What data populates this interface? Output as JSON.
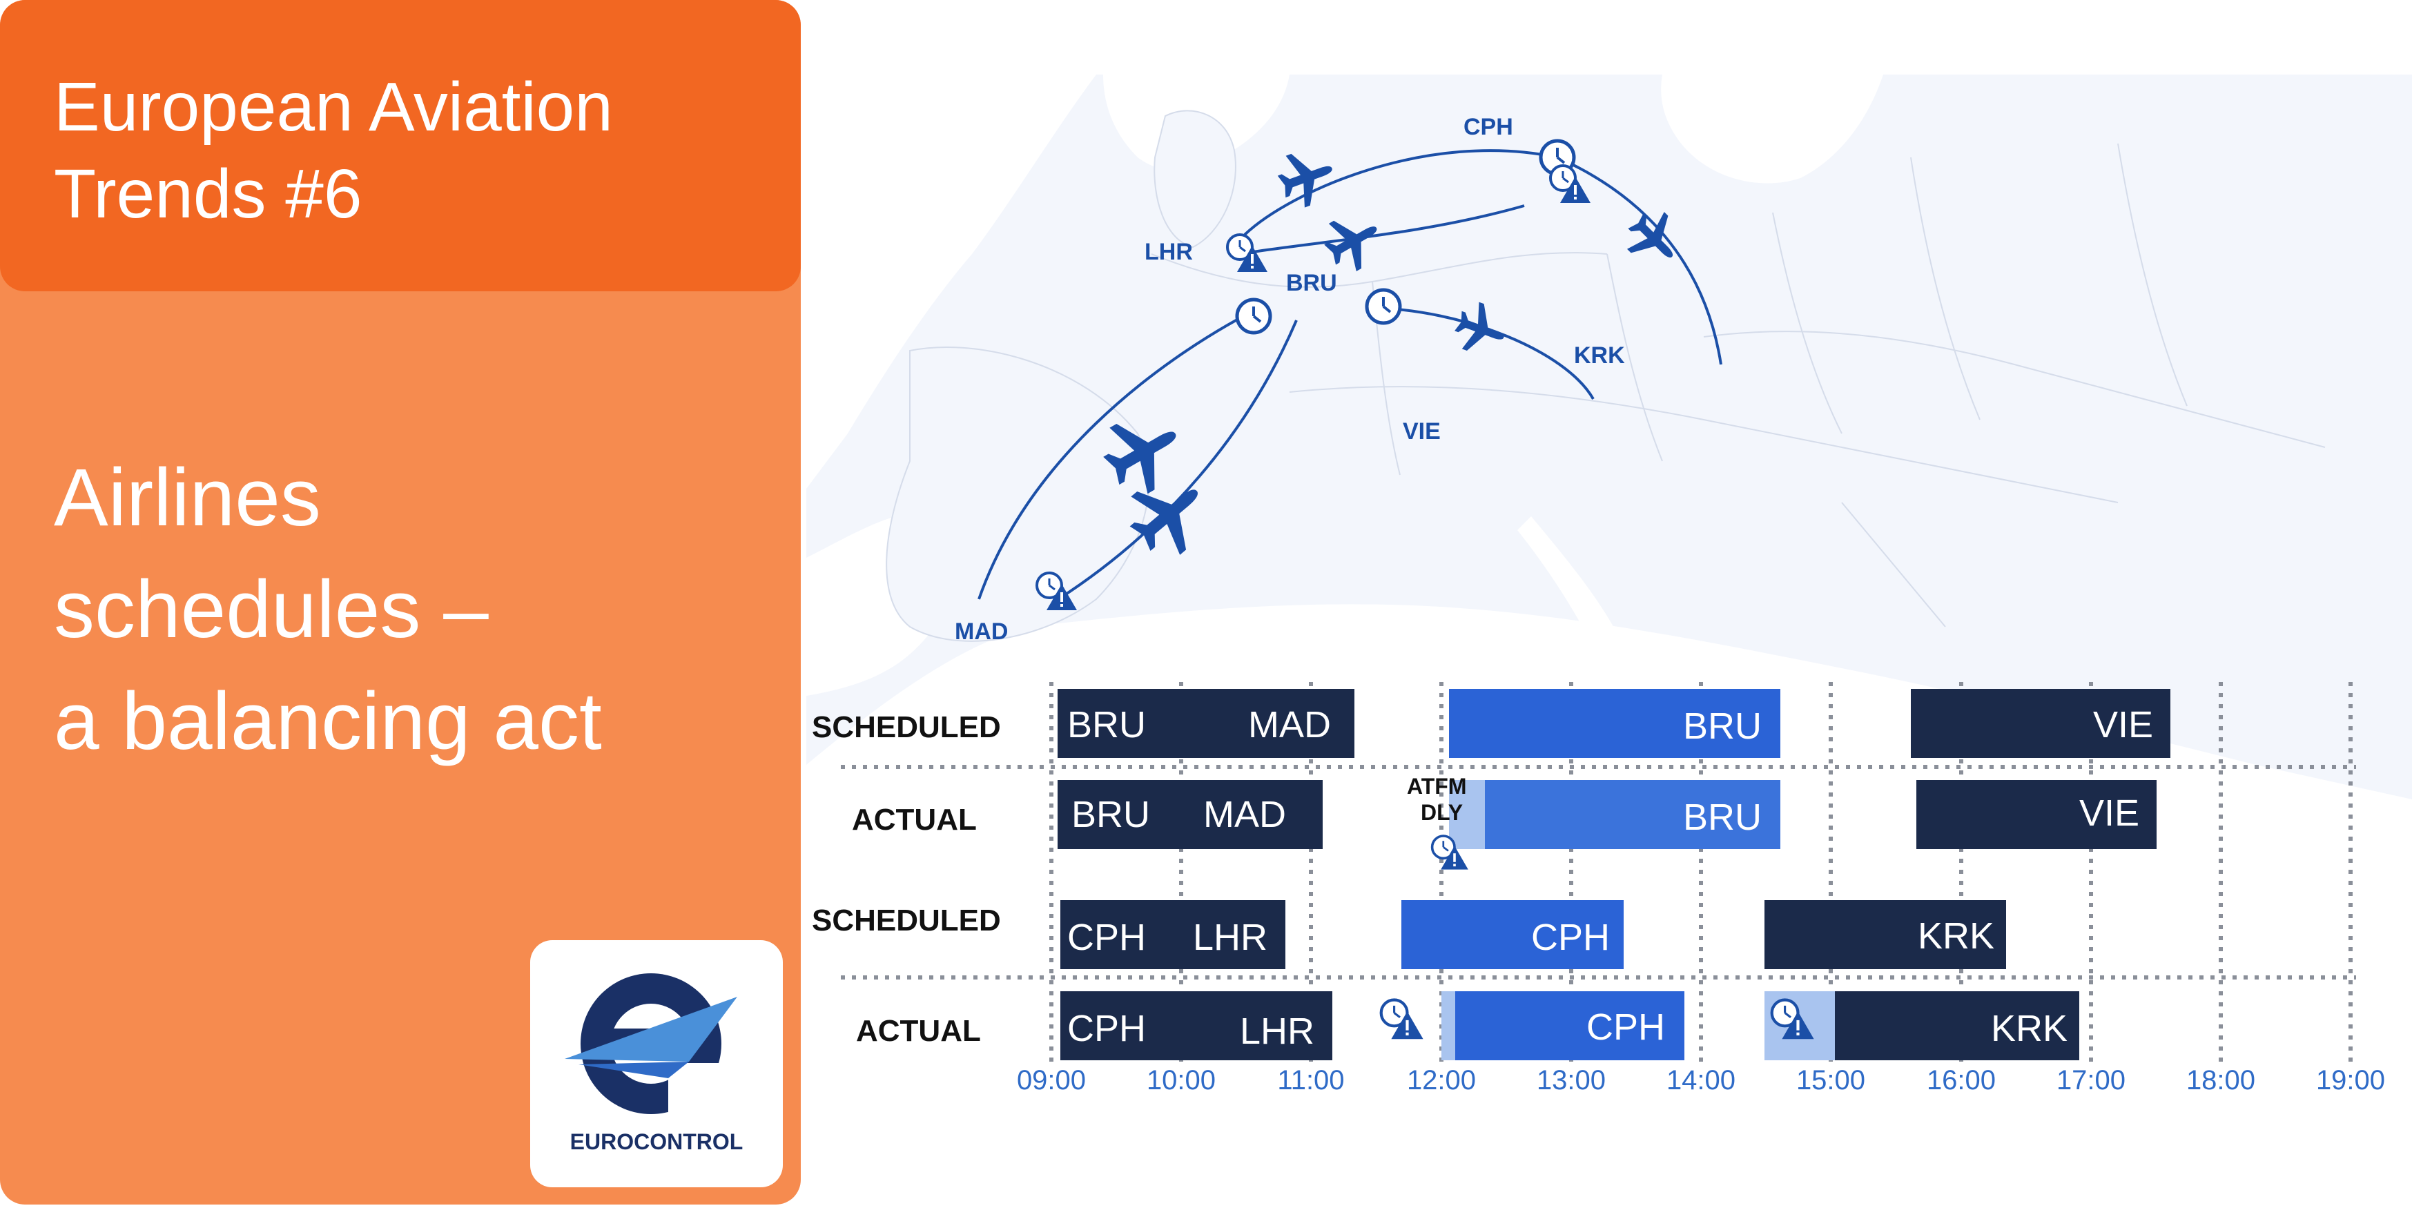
{
  "header": {
    "series_title_line1": "European Aviation",
    "series_title_line2": "Trends #6"
  },
  "headline": {
    "line1": "Airlines",
    "line2": "schedules –",
    "line3": "a balancing act"
  },
  "logo": {
    "text": "EUROCONTROL"
  },
  "map": {
    "cities": [
      "CPH",
      "LHR",
      "BRU",
      "KRK",
      "VIE",
      "MAD"
    ]
  },
  "timeline": {
    "rows": {
      "scheduled_1": "SCHEDULED",
      "actual_1": "ACTUAL",
      "scheduled_2": "SCHEDULED",
      "actual_2": "ACTUAL"
    },
    "atfm_line1": "ATFM",
    "atfm_line2": "DLY",
    "ticks": [
      "09:00",
      "10:00",
      "11:00",
      "12:00",
      "13:00",
      "14:00",
      "15:00",
      "16:00",
      "17:00",
      "18:00",
      "19:00"
    ],
    "bars": {
      "s1_bru_mad_from": "BRU",
      "s1_bru_mad_to": "MAD",
      "s1_bru": "BRU",
      "s1_vie": "VIE",
      "a1_bru_mad_from": "BRU",
      "a1_bru_mad_to": "MAD",
      "a1_bru": "BRU",
      "a1_vie": "VIE",
      "s2_cph_lhr_from": "CPH",
      "s2_cph_lhr_to": "LHR",
      "s2_cph": "CPH",
      "s2_krk": "KRK",
      "a2_cph_lhr_from": "CPH",
      "a2_cph_lhr_to": "LHR",
      "a2_cph": "CPH",
      "a2_krk": "KRK"
    }
  },
  "colors": {
    "orange_dark": "#f26722",
    "orange_light": "#f68b4f",
    "navy": "#1b2a4a",
    "blue": "#2b63d6",
    "light_blue": "#a9c4ef",
    "route_blue": "#1b4fa7"
  }
}
